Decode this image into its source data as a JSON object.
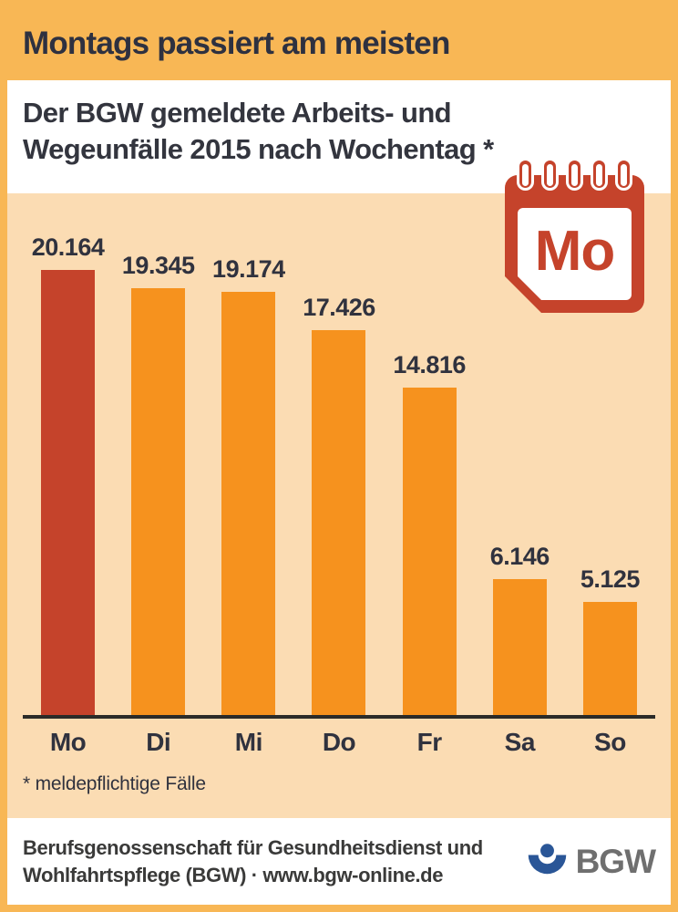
{
  "header": {
    "title": "Montags passiert am meisten"
  },
  "subtitle": {
    "line1": "Der BGW gemeldete Arbeits- und",
    "line2": "Wegeunfälle 2015 nach Wochentag *"
  },
  "calendar_icon": {
    "label": "Mo"
  },
  "chart_data": {
    "type": "bar",
    "categories": [
      "Mo",
      "Di",
      "Mi",
      "Do",
      "Fr",
      "Sa",
      "So"
    ],
    "values": [
      20164,
      19345,
      19174,
      17426,
      14816,
      6146,
      5125
    ],
    "value_labels": [
      "20.164",
      "19.345",
      "19.174",
      "17.426",
      "14.816",
      "6.146",
      "5.125"
    ],
    "title": "Der BGW gemeldete Arbeits- und Wegeunfälle 2015 nach Wochentag *",
    "xlabel": "",
    "ylabel": "",
    "ylim": [
      0,
      20164
    ],
    "grid": false,
    "legend": false,
    "highlight_index": 0,
    "bar_color": "#F6921E",
    "highlight_color": "#C5432B"
  },
  "footnote": "* meldepflichtige Fälle",
  "footer": {
    "line1": "Berufsgenossenschaft für Gesundheitsdienst und",
    "line2": "Wohlfahrtspflege (BGW) · www.bgw-online.de",
    "logo_text": "BGW"
  },
  "colors": {
    "frame": "#F8B755",
    "chart_background": "#FBDCB3",
    "ink": "#30323E",
    "axis_line": "#2B2B28",
    "logo_blue": "#2A5697",
    "logo_gray": "#6F6F6F"
  }
}
